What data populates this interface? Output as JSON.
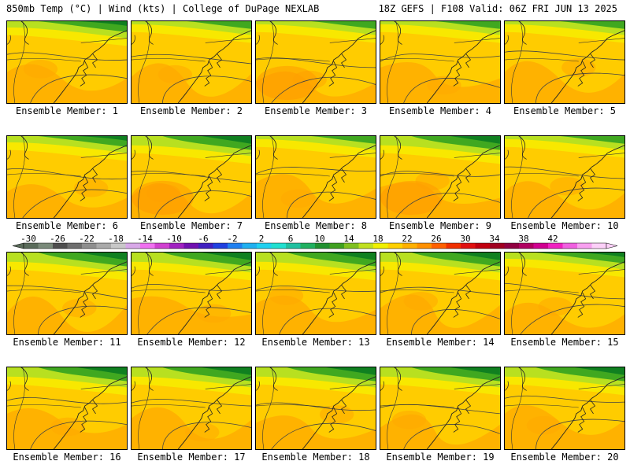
{
  "header": {
    "left": "850mb Temp (°C) | Wind (kts) | College of DuPage NEXLAB",
    "right": "18Z GEFS | F108 Valid: 06Z FRI JUN 13 2025"
  },
  "member_label_prefix": "Ensemble Member: ",
  "members": [
    1,
    2,
    3,
    4,
    5,
    6,
    7,
    8,
    9,
    10,
    11,
    12,
    13,
    14,
    15,
    16,
    17,
    18,
    19,
    20
  ],
  "colorbar": {
    "tick_labels": [
      "-30",
      "-26",
      "-22",
      "-18",
      "-14",
      "-10",
      "-6",
      "-2",
      "2",
      "6",
      "10",
      "14",
      "18",
      "22",
      "26",
      "30",
      "34",
      "38",
      "42"
    ],
    "colors": [
      "#5a6b5a",
      "#7a8a7a",
      "#4e4e4e",
      "#6e6e6e",
      "#8e8e8e",
      "#aaaaaa",
      "#c8c8c8",
      "#d8a8e8",
      "#f070f0",
      "#d040d0",
      "#a020c0",
      "#7010b0",
      "#4020c0",
      "#2040e0",
      "#2080f0",
      "#20b0f0",
      "#20d0f0",
      "#20e0d0",
      "#20c0a0",
      "#20b060",
      "#209030",
      "#40a020",
      "#80c020",
      "#c0e020",
      "#f0f000",
      "#ffd000",
      "#ffb000",
      "#ff9000",
      "#ff6000",
      "#f03000",
      "#e01010",
      "#c00010",
      "#a00020",
      "#900040",
      "#b00060",
      "#d00090",
      "#f020c0",
      "#f060e0",
      "#f8a0f0",
      "#fcd0f8"
    ]
  },
  "palette": {
    "warm": "#ffcc00",
    "orange": "#ffaa00",
    "deep_orange": "#ff9900",
    "yellow": "#f8e800",
    "green_light": "#b8e020",
    "green": "#40a820",
    "green_dark": "#108020"
  }
}
